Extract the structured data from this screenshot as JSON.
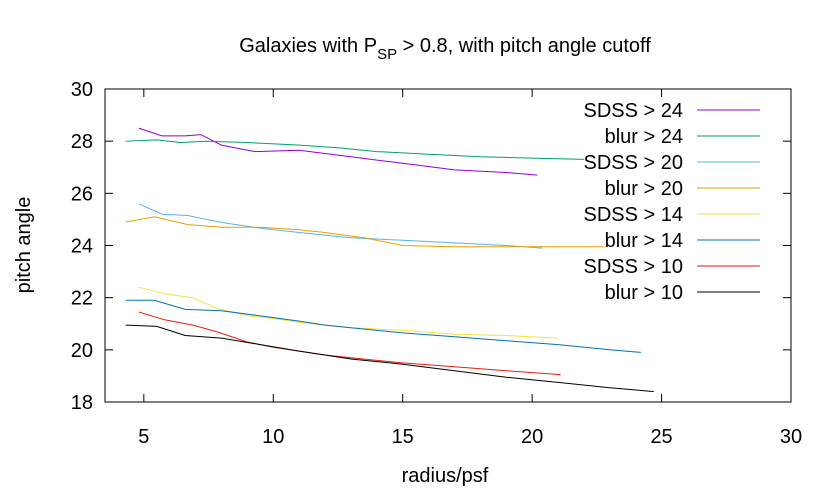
{
  "chart_data": {
    "type": "line",
    "title": {
      "prefix": "Galaxies with P",
      "subscript": "SP",
      "suffix": " > 0.8, with pitch angle cutoff"
    },
    "xlabel": "radius/psf",
    "ylabel": "pitch angle",
    "xlim": [
      3.5,
      30
    ],
    "ylim": [
      18,
      30
    ],
    "xticks": [
      5,
      10,
      15,
      20,
      25,
      30
    ],
    "yticks": [
      18,
      20,
      22,
      24,
      26,
      28,
      30
    ],
    "grid": false,
    "legend_position": "top-right",
    "series": [
      {
        "name": "SDSS > 24",
        "color": "#9400d3",
        "x": [
          4.8,
          5.7,
          6.6,
          7.2,
          8.0,
          9.3,
          11.0,
          13.0,
          15.0,
          17.0,
          19.0,
          20.2
        ],
        "y": [
          28.5,
          28.2,
          28.2,
          28.25,
          27.85,
          27.6,
          27.65,
          27.4,
          27.15,
          26.9,
          26.8,
          26.7
        ]
      },
      {
        "name": "blur > 24",
        "color": "#009e73",
        "x": [
          4.3,
          5.5,
          6.4,
          7.4,
          9.0,
          11.0,
          12.5,
          14.0,
          16.0,
          18.0,
          20.0,
          22.0
        ],
        "y": [
          28.0,
          28.05,
          27.95,
          28.0,
          27.95,
          27.85,
          27.75,
          27.6,
          27.5,
          27.4,
          27.35,
          27.3
        ]
      },
      {
        "name": "SDSS > 20",
        "color": "#56b4e9",
        "x": [
          4.8,
          5.7,
          6.7,
          7.4,
          8.2,
          9.6,
          11.0,
          12.0,
          13.0,
          15.0,
          17.0,
          19.0,
          20.4
        ],
        "y": [
          25.6,
          25.2,
          25.15,
          25.0,
          24.85,
          24.65,
          24.5,
          24.4,
          24.3,
          24.2,
          24.1,
          24.0,
          23.9
        ]
      },
      {
        "name": "blur > 20",
        "color": "#e69f00",
        "x": [
          4.3,
          5.4,
          6.7,
          8.0,
          9.5,
          11.0,
          12.0,
          13.5,
          15.0,
          17.0,
          19.0,
          21.0,
          22.8
        ],
        "y": [
          24.9,
          25.1,
          24.8,
          24.7,
          24.7,
          24.6,
          24.5,
          24.3,
          24.0,
          23.95,
          23.95,
          23.95,
          23.95
        ]
      },
      {
        "name": "SDSS > 14",
        "color": "#f0e442",
        "x": [
          4.8,
          5.8,
          6.9,
          7.8,
          9.0,
          10.0,
          11.0,
          12.0,
          13.0,
          15.0,
          17.0,
          19.0,
          21.0
        ],
        "y": [
          22.4,
          22.15,
          22.0,
          21.6,
          21.3,
          21.2,
          21.05,
          20.95,
          20.85,
          20.75,
          20.6,
          20.55,
          20.45
        ]
      },
      {
        "name": "blur > 14",
        "color": "#0072b2",
        "x": [
          4.3,
          5.4,
          6.6,
          8.0,
          9.5,
          11.0,
          12.0,
          13.0,
          15.0,
          17.0,
          19.0,
          21.0,
          23.0,
          24.2
        ],
        "y": [
          21.9,
          21.9,
          21.55,
          21.5,
          21.3,
          21.1,
          20.95,
          20.85,
          20.65,
          20.5,
          20.35,
          20.2,
          20.0,
          19.9
        ]
      },
      {
        "name": "SDSS > 10",
        "color": "#e51e10",
        "x": [
          4.8,
          5.8,
          6.9,
          7.8,
          9.0,
          10.0,
          11.0,
          12.0,
          13.0,
          15.0,
          17.0,
          19.0,
          21.1
        ],
        "y": [
          21.45,
          21.15,
          20.95,
          20.7,
          20.3,
          20.1,
          19.95,
          19.8,
          19.7,
          19.5,
          19.35,
          19.2,
          19.05
        ]
      },
      {
        "name": "blur > 10",
        "color": "#000000",
        "x": [
          4.3,
          5.5,
          6.6,
          8.0,
          9.5,
          11.0,
          13.0,
          15.0,
          17.0,
          19.0,
          21.0,
          23.0,
          24.7
        ],
        "y": [
          20.95,
          20.9,
          20.55,
          20.45,
          20.2,
          19.95,
          19.65,
          19.45,
          19.2,
          18.95,
          18.75,
          18.55,
          18.4
        ]
      }
    ]
  }
}
